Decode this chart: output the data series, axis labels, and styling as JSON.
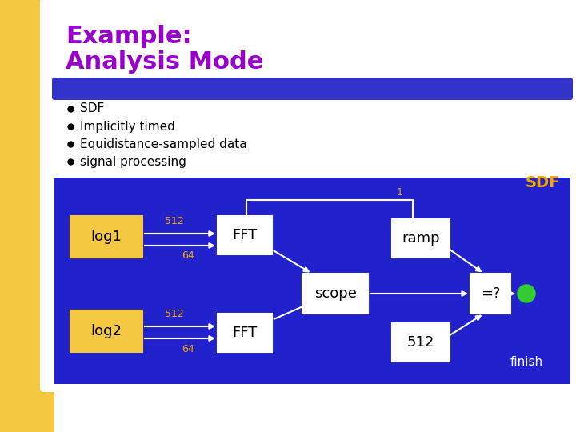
{
  "title_line1": "Example:",
  "title_line2": "Analysis Mode",
  "title_color": "#9900cc",
  "bullet_points": [
    "SDF",
    "Implicitly timed",
    "Equidistance-sampled data",
    "signal processing"
  ],
  "bg_color": "#ffffff",
  "left_bar_color": "#f5c842",
  "blue_bar_color": "#3333cc",
  "diagram_bg": "#2222cc",
  "box_orange": "#f5c842",
  "box_white": "#ffffff",
  "arrow_color": "#ffffff",
  "label_color_orange": "#f5a500",
  "green_dot": "#33cc33",
  "text_dark": "#000000",
  "text_white": "#ffffff"
}
